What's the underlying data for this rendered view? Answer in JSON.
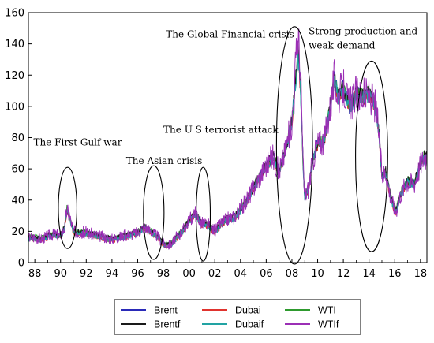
{
  "chart_data": {
    "type": "line",
    "xlim": [
      1987.5,
      2018.5
    ],
    "ylim": [
      0,
      160
    ],
    "y_ticks": [
      0,
      20,
      40,
      60,
      80,
      100,
      120,
      140,
      160
    ],
    "x_ticks": [
      {
        "value": 1988,
        "label": "88"
      },
      {
        "value": 1990,
        "label": "90"
      },
      {
        "value": 1992,
        "label": "92"
      },
      {
        "value": 1994,
        "label": "94"
      },
      {
        "value": 1996,
        "label": "96"
      },
      {
        "value": 1998,
        "label": "98"
      },
      {
        "value": 2000,
        "label": "00"
      },
      {
        "value": 2002,
        "label": "02"
      },
      {
        "value": 2004,
        "label": "04"
      },
      {
        "value": 2006,
        "label": "06"
      },
      {
        "value": 2008,
        "label": "08"
      },
      {
        "value": 2010,
        "label": "10"
      },
      {
        "value": 2012,
        "label": "12"
      },
      {
        "value": 2014,
        "label": "14"
      },
      {
        "value": 2016,
        "label": "16"
      },
      {
        "value": 2018,
        "label": "18"
      }
    ],
    "grid": false,
    "legend_placement": "bottom",
    "base_x": [
      1987.5,
      1988.0,
      1988.5,
      1989.0,
      1989.5,
      1990.0,
      1990.3,
      1990.5,
      1990.75,
      1991.0,
      1991.5,
      1992.0,
      1993.0,
      1994.0,
      1995.0,
      1996.0,
      1996.5,
      1997.0,
      1997.5,
      1998.0,
      1998.5,
      1999.0,
      1999.5,
      2000.0,
      2000.5,
      2001.0,
      2001.5,
      2002.0,
      2002.5,
      2003.0,
      2003.5,
      2004.0,
      2004.5,
      2005.0,
      2005.5,
      2006.0,
      2006.5,
      2007.0,
      2007.5,
      2008.0,
      2008.3,
      2008.5,
      2008.7,
      2008.9,
      2009.0,
      2009.3,
      2009.6,
      2010.0,
      2010.5,
      2011.0,
      2011.3,
      2011.6,
      2012.0,
      2012.5,
      2013.0,
      2013.5,
      2014.0,
      2014.5,
      2014.75,
      2015.0,
      2015.3,
      2015.6,
      2015.9,
      2016.1,
      2016.5,
      2017.0,
      2017.5,
      2018.0,
      2018.3
    ],
    "base_y": [
      16,
      16,
      15,
      17,
      18,
      17,
      22,
      34,
      28,
      20,
      19,
      19,
      17,
      15,
      17,
      19,
      23,
      20,
      17,
      12,
      11,
      16,
      20,
      27,
      31,
      25,
      24,
      20,
      25,
      28,
      29,
      34,
      40,
      48,
      55,
      62,
      68,
      58,
      72,
      90,
      118,
      135,
      105,
      55,
      42,
      48,
      65,
      76,
      78,
      100,
      118,
      106,
      112,
      100,
      108,
      106,
      108,
      100,
      85,
      55,
      58,
      45,
      36,
      33,
      45,
      52,
      50,
      63,
      68
    ],
    "series": [
      {
        "name": "Brent",
        "color": "#2a2ab8",
        "offset": 0.0,
        "noise": 2.5,
        "seed": 11
      },
      {
        "name": "Dubai",
        "color": "#e0332e",
        "offset": -1.2,
        "noise": 2.0,
        "seed": 23
      },
      {
        "name": "WTI",
        "color": "#2e9a2e",
        "offset": 0.8,
        "noise": 2.2,
        "seed": 37
      },
      {
        "name": "Brentf",
        "color": "#1a1a1a",
        "offset": 0.4,
        "noise": 2.4,
        "seed": 41
      },
      {
        "name": "Dubaif",
        "color": "#22a3a3",
        "offset": -0.8,
        "noise": 2.4,
        "seed": 53
      },
      {
        "name": "WTIf",
        "color": "#9b2fb5",
        "offset": 0.2,
        "noise": 5.5,
        "seed": 67,
        "spike_scale": 1.09
      }
    ],
    "annotations": [
      {
        "text": "The First Gulf war",
        "x": 1987.9,
        "y": 75
      },
      {
        "text": "The Asian crisis",
        "x": 1995.1,
        "y": 63
      },
      {
        "text": "The U S terrorist attack",
        "x": 1998.0,
        "y": 83
      },
      {
        "text": "The Global Financial crisis",
        "x": 1998.2,
        "y": 144
      },
      {
        "text": "Strong production and",
        "x": 2009.3,
        "y": 146
      },
      {
        "text": "weak demand",
        "x": 2009.3,
        "y": 137
      }
    ],
    "highlight_ellipses": [
      {
        "center": [
          1990.55,
          35
        ],
        "rx_years": 0.72,
        "ry": 26
      },
      {
        "center": [
          1997.25,
          32
        ],
        "rx_years": 0.8,
        "ry": 30
      },
      {
        "center": [
          2001.1,
          31
        ],
        "rx_years": 0.55,
        "ry": 30
      },
      {
        "center": [
          2008.2,
          75
        ],
        "rx_years": 1.4,
        "ry": 76
      },
      {
        "center": [
          2014.2,
          68
        ],
        "rx_years": 1.25,
        "ry": 61
      }
    ]
  }
}
